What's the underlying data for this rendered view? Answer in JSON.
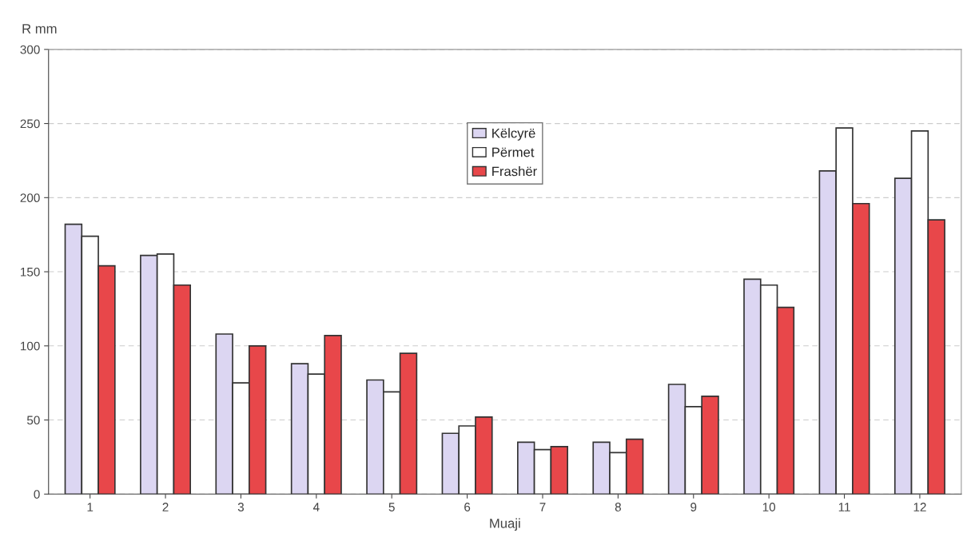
{
  "chart_data": {
    "type": "bar",
    "xlabel": "Muaji",
    "ylabel": "R mm",
    "categories": [
      "1",
      "2",
      "3",
      "4",
      "5",
      "6",
      "7",
      "8",
      "9",
      "10",
      "11",
      "12"
    ],
    "series": [
      {
        "name": "Këlcyrë",
        "color": "#dcd6f2",
        "values": [
          182,
          161,
          108,
          88,
          77,
          41,
          35,
          35,
          74,
          145,
          218,
          213
        ]
      },
      {
        "name": "Përmet",
        "color": "#ffffff",
        "values": [
          174,
          162,
          75,
          81,
          69,
          46,
          30,
          28,
          59,
          141,
          247,
          245
        ]
      },
      {
        "name": "Frashër",
        "color": "#e8474a",
        "values": [
          154,
          141,
          100,
          107,
          95,
          52,
          32,
          37,
          66,
          126,
          196,
          185
        ]
      }
    ],
    "ylim": [
      0,
      300
    ],
    "yticks": [
      0,
      50,
      100,
      150,
      200,
      250,
      300
    ],
    "grid": "y",
    "legend": "top"
  }
}
